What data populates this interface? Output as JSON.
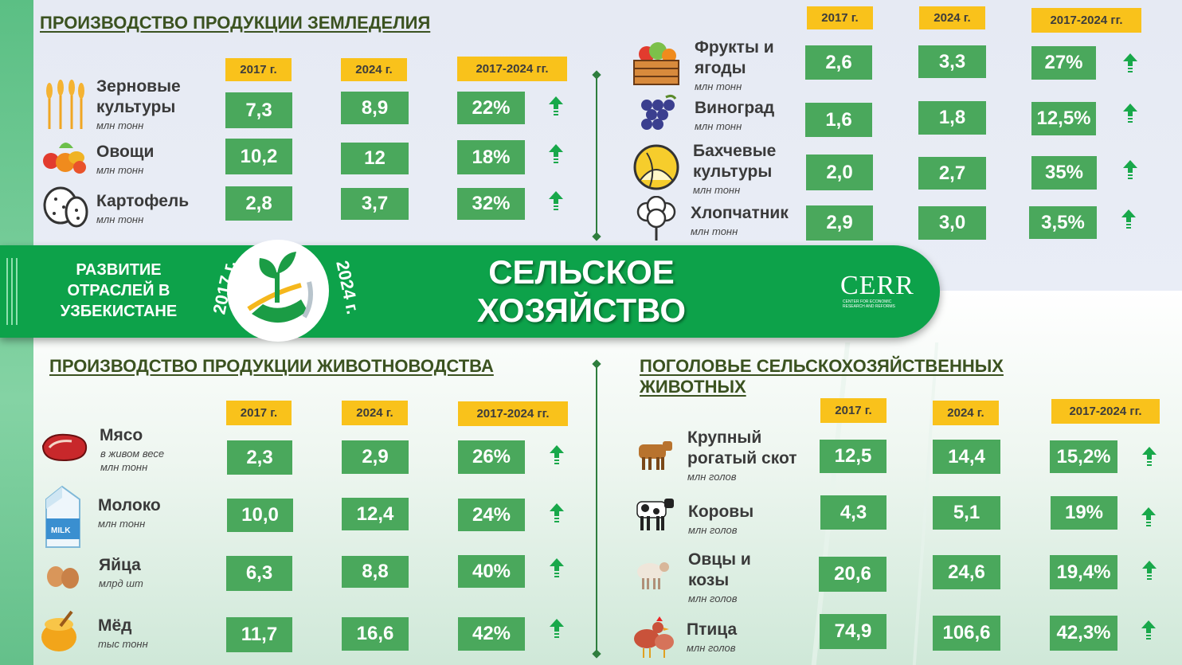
{
  "banner": {
    "left_text": "РАЗВИТИЕ ОТРАСЛЕЙ В УЗБЕКИСТАНЕ",
    "year_start": "2017 г.",
    "year_end": "2024 г.",
    "title": "СЕЛЬСКОЕ ХОЗЯЙСТВО",
    "logo": "CERR",
    "logo_sub": "CENTER FOR ECONOMIC RESEARCH AND REFORMS"
  },
  "crops": {
    "title": "ПРОИЗВОДСТВО ПРОДУКЦИИ ЗЕМЛЕДЕЛИЯ",
    "headers": [
      "2017 г.",
      "2024 г.",
      "2017-2024 гг."
    ],
    "rows": [
      {
        "name": "Зерновые культуры",
        "unit": "млн тонн",
        "v2017": "7,3",
        "v2024": "8,9",
        "change": "22%",
        "icon": "wheat-icon"
      },
      {
        "name": "Овощи",
        "unit": "млн тонн",
        "v2017": "10,2",
        "v2024": "12",
        "change": "18%",
        "icon": "vegetables-icon"
      },
      {
        "name": "Картофель",
        "unit": "млн тонн",
        "v2017": "2,8",
        "v2024": "3,7",
        "change": "32%",
        "icon": "potato-icon"
      }
    ]
  },
  "crops2": {
    "headers": [
      "2017 г.",
      "2024 г.",
      "2017-2024 гг."
    ],
    "rows": [
      {
        "name": "Фрукты и ягоды",
        "unit": "млн тонн",
        "v2017": "2,6",
        "v2024": "3,3",
        "change": "27%",
        "icon": "fruit-crate-icon"
      },
      {
        "name": "Виноград",
        "unit": "млн тонн",
        "v2017": "1,6",
        "v2024": "1,8",
        "change": "12,5%",
        "icon": "grapes-icon"
      },
      {
        "name": "Бахчевые культуры",
        "unit": "млн тонн",
        "v2017": "2,0",
        "v2024": "2,7",
        "change": "35%",
        "icon": "melon-icon"
      },
      {
        "name": "Хлопчатник",
        "unit": "млн тонн",
        "v2017": "2,9",
        "v2024": "3,0",
        "change": "3,5%",
        "icon": "cotton-icon"
      }
    ]
  },
  "livestock_products": {
    "title": "ПРОИЗВОДСТВО ПРОДУКЦИИ ЖИВОТНОВОДСТВА",
    "headers": [
      "2017 г.",
      "2024 г.",
      "2017-2024 гг."
    ],
    "rows": [
      {
        "name": "Мясо",
        "unit": "в живом весе млн тонн",
        "v2017": "2,3",
        "v2024": "2,9",
        "change": "26%",
        "icon": "meat-icon"
      },
      {
        "name": "Молоко",
        "unit": "млн тонн",
        "v2017": "10,0",
        "v2024": "12,4",
        "change": "24%",
        "icon": "milk-carton-icon"
      },
      {
        "name": "Яйца",
        "unit": "млрд шт",
        "v2017": "6,3",
        "v2024": "8,8",
        "change": "40%",
        "icon": "eggs-icon"
      },
      {
        "name": "Мёд",
        "unit": "тыс тонн",
        "v2017": "11,7",
        "v2024": "16,6",
        "change": "42%",
        "icon": "honey-icon"
      }
    ]
  },
  "livestock_heads": {
    "title": "ПОГОЛОВЬЕ СЕЛЬСКОХОЗЯЙСТВЕННЫХ ЖИВОТНЫХ",
    "headers": [
      "2017 г.",
      "2024 г.",
      "2017-2024 гг."
    ],
    "rows": [
      {
        "name": "Крупный рогатый скот",
        "unit": "млн голов",
        "v2017": "12,5",
        "v2024": "14,4",
        "change": "15,2%",
        "icon": "cattle-icon"
      },
      {
        "name": "Коровы",
        "unit": "млн голов",
        "v2017": "4,3",
        "v2024": "5,1",
        "change": "19%",
        "icon": "cow-icon"
      },
      {
        "name": "Овцы и козы",
        "unit": "млн голов",
        "v2017": "20,6",
        "v2024": "24,6",
        "change": "19,4%",
        "icon": "sheep-icon"
      },
      {
        "name": "Птица",
        "unit": "млн голов",
        "v2017": "74,9",
        "v2024": "106,6",
        "change": "42,3%",
        "icon": "chicken-icon"
      }
    ]
  },
  "colors": {
    "green_box": "#4aa85c",
    "header_yellow": "#f9c21b",
    "banner_green": "#0da24a",
    "title_olive": "#3b5220",
    "arrow_green": "#18a84a"
  }
}
